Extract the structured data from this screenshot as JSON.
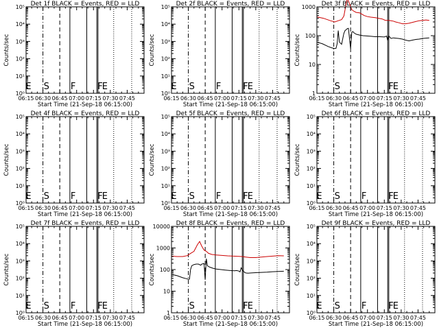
{
  "xlabel": "Start Time (21-Sep-18 06:15:00)",
  "ylabel": "Counts/sec",
  "chart_data": [
    {
      "type": "line",
      "title": "Det 1f BLACK = Events, RED = LLD",
      "yscale": "log",
      "ylim": [
        1,
        100000
      ],
      "yticks": [
        "10⁰",
        "10¹",
        "10²",
        "10³",
        "10⁴",
        "10⁵"
      ],
      "xlim": [
        0,
        105
      ],
      "xticks": [
        "06:15",
        "06:30",
        "06:45",
        "07:00",
        "07:15",
        "07:30",
        "07:45"
      ],
      "markers": [
        {
          "label": "E",
          "x": -1
        },
        {
          "label": "S",
          "x": 15
        },
        {
          "label": "F",
          "x": 39
        },
        {
          "label": "F",
          "x": 63
        },
        {
          "label": "E",
          "x": 67
        }
      ],
      "vlines": [
        {
          "x": 15,
          "style": "dashdot"
        },
        {
          "x": 30,
          "style": "dashed"
        },
        {
          "x": 39,
          "style": "solid"
        },
        {
          "x": 54,
          "style": "solid"
        },
        {
          "x": 63,
          "style": "solid"
        },
        {
          "x": 64,
          "style": "solid"
        },
        {
          "x": 78,
          "style": "dotted"
        },
        {
          "x": 94,
          "style": "dotted"
        }
      ],
      "series": []
    },
    {
      "type": "line",
      "title": "Det 2f BLACK = Events, RED = LLD",
      "yscale": "log",
      "ylim": [
        1,
        100000
      ],
      "yticks": [
        "10⁰",
        "10¹",
        "10²",
        "10³",
        "10⁴",
        "10⁵"
      ],
      "xlim": [
        0,
        105
      ],
      "xticks": [
        "06:15",
        "06:30",
        "06:45",
        "07:00",
        "07:15",
        "07:30",
        "07:45"
      ],
      "markers": [
        {
          "label": "E",
          "x": -1
        },
        {
          "label": "S",
          "x": 15
        },
        {
          "label": "F",
          "x": 39
        },
        {
          "label": "F",
          "x": 63
        },
        {
          "label": "E",
          "x": 67
        }
      ],
      "vlines": [
        {
          "x": 15,
          "style": "dashdot"
        },
        {
          "x": 30,
          "style": "dashed"
        },
        {
          "x": 39,
          "style": "solid"
        },
        {
          "x": 54,
          "style": "solid"
        },
        {
          "x": 63,
          "style": "solid"
        },
        {
          "x": 64,
          "style": "solid"
        },
        {
          "x": 78,
          "style": "dotted"
        },
        {
          "x": 94,
          "style": "dotted"
        }
      ],
      "series": []
    },
    {
      "type": "line",
      "title": "Det 3f BLACK = Events, RED = LLD",
      "yscale": "log",
      "ylim": [
        1,
        1000
      ],
      "yticks": [
        "1",
        "10",
        "100",
        "1000"
      ],
      "xlim": [
        0,
        105
      ],
      "xticks": [
        "06:15",
        "06:30",
        "06:45",
        "07:00",
        "07:15",
        "07:30",
        "07:45"
      ],
      "markers": [
        {
          "label": "S",
          "x": 15
        },
        {
          "label": "F",
          "x": 63
        },
        {
          "label": "E",
          "x": 67
        }
      ],
      "vlines": [
        {
          "x": 15,
          "style": "dashdot"
        },
        {
          "x": 30,
          "style": "dashed"
        },
        {
          "x": 39,
          "style": "solid"
        },
        {
          "x": 54,
          "style": "solid"
        },
        {
          "x": 63,
          "style": "solid"
        },
        {
          "x": 64,
          "style": "solid"
        },
        {
          "x": 78,
          "style": "dotted"
        },
        {
          "x": 94,
          "style": "dotted"
        }
      ],
      "series": [
        {
          "color": "#cc0000",
          "x": [
            0,
            6,
            12,
            16,
            19,
            22,
            24,
            27,
            29,
            31,
            33,
            35,
            38,
            40,
            42,
            45,
            48,
            52,
            55,
            58,
            61,
            64,
            66,
            68,
            70,
            73,
            76,
            79,
            82,
            85,
            88,
            91,
            94,
            97,
            100
          ],
          "y": [
            450,
            400,
            330,
            300,
            330,
            360,
            480,
            2000,
            1300,
            800,
            700,
            640,
            620,
            560,
            500,
            460,
            440,
            420,
            400,
            380,
            340,
            340,
            330,
            320,
            300,
            280,
            260,
            260,
            270,
            290,
            310,
            330,
            340,
            350,
            340
          ]
        },
        {
          "color": "#000000",
          "x": [
            0,
            5,
            10,
            13,
            15,
            17,
            18,
            19,
            20,
            22,
            24,
            25,
            26,
            27,
            28,
            30,
            31,
            32,
            33,
            35,
            38,
            41,
            44,
            48,
            52,
            56,
            60,
            62,
            63,
            64,
            66,
            68,
            70,
            73,
            76,
            79,
            82,
            85,
            88,
            91,
            94,
            97,
            100
          ],
          "y": [
            60,
            52,
            42,
            38,
            36,
            36,
            52,
            150,
            60,
            50,
            120,
            150,
            160,
            175,
            180,
            35,
            130,
            140,
            125,
            112,
            105,
            100,
            98,
            95,
            92,
            92,
            90,
            96,
            68,
            98,
            80,
            84,
            82,
            80,
            76,
            70,
            66,
            70,
            74,
            76,
            80,
            82,
            84
          ]
        }
      ]
    },
    {
      "type": "line",
      "title": "Det 4f BLACK = Events, RED = LLD",
      "yscale": "log",
      "ylim": [
        1,
        100000
      ],
      "yticks": [
        "10⁰",
        "10¹",
        "10²",
        "10³",
        "10⁴",
        "10⁵"
      ],
      "xlim": [
        0,
        105
      ],
      "xticks": [
        "06:15",
        "06:30",
        "06:45",
        "07:00",
        "07:15",
        "07:30",
        "07:45"
      ],
      "markers": [
        {
          "label": "E",
          "x": -1
        },
        {
          "label": "S",
          "x": 15
        },
        {
          "label": "F",
          "x": 39
        },
        {
          "label": "F",
          "x": 63
        },
        {
          "label": "E",
          "x": 67
        }
      ],
      "vlines": [
        {
          "x": 15,
          "style": "dashdot"
        },
        {
          "x": 30,
          "style": "dashed"
        },
        {
          "x": 39,
          "style": "solid"
        },
        {
          "x": 54,
          "style": "solid"
        },
        {
          "x": 63,
          "style": "solid"
        },
        {
          "x": 64,
          "style": "solid"
        },
        {
          "x": 78,
          "style": "dotted"
        },
        {
          "x": 94,
          "style": "dotted"
        }
      ],
      "series": []
    },
    {
      "type": "line",
      "title": "Det 5f BLACK = Events, RED = LLD",
      "yscale": "log",
      "ylim": [
        1,
        100000
      ],
      "yticks": [
        "10⁰",
        "10¹",
        "10²",
        "10³",
        "10⁴",
        "10⁵"
      ],
      "xlim": [
        0,
        105
      ],
      "xticks": [
        "06:15",
        "06:30",
        "06:45",
        "07:00",
        "07:15",
        "07:30",
        "07:45"
      ],
      "markers": [
        {
          "label": "E",
          "x": -1
        },
        {
          "label": "S",
          "x": 15
        },
        {
          "label": "F",
          "x": 39
        },
        {
          "label": "F",
          "x": 63
        },
        {
          "label": "E",
          "x": 67
        }
      ],
      "vlines": [
        {
          "x": 15,
          "style": "dashdot"
        },
        {
          "x": 30,
          "style": "dashed"
        },
        {
          "x": 39,
          "style": "solid"
        },
        {
          "x": 54,
          "style": "solid"
        },
        {
          "x": 63,
          "style": "solid"
        },
        {
          "x": 64,
          "style": "solid"
        },
        {
          "x": 78,
          "style": "dotted"
        },
        {
          "x": 94,
          "style": "dotted"
        }
      ],
      "series": []
    },
    {
      "type": "line",
      "title": "Det 6f BLACK = Events, RED = LLD",
      "yscale": "log",
      "ylim": [
        1,
        100000
      ],
      "yticks": [
        "10⁰",
        "10¹",
        "10²",
        "10³",
        "10⁴",
        "10⁵"
      ],
      "xlim": [
        0,
        105
      ],
      "xticks": [
        "06:15",
        "06:30",
        "06:45",
        "07:00",
        "07:15",
        "07:30",
        "07:45"
      ],
      "markers": [
        {
          "label": "E",
          "x": -1
        },
        {
          "label": "S",
          "x": 15
        },
        {
          "label": "F",
          "x": 39
        },
        {
          "label": "F",
          "x": 63
        },
        {
          "label": "E",
          "x": 67
        }
      ],
      "vlines": [
        {
          "x": 15,
          "style": "dashdot"
        },
        {
          "x": 30,
          "style": "dashed"
        },
        {
          "x": 39,
          "style": "solid"
        },
        {
          "x": 54,
          "style": "solid"
        },
        {
          "x": 63,
          "style": "solid"
        },
        {
          "x": 64,
          "style": "solid"
        },
        {
          "x": 78,
          "style": "dotted"
        },
        {
          "x": 94,
          "style": "dotted"
        }
      ],
      "series": []
    },
    {
      "type": "line",
      "title": "Det 7f BLACK = Events, RED = LLD",
      "yscale": "log",
      "ylim": [
        1,
        100000
      ],
      "yticks": [
        "10⁰",
        "10¹",
        "10²",
        "10³",
        "10⁴",
        "10⁵"
      ],
      "xlim": [
        0,
        105
      ],
      "xticks": [
        "06:15",
        "06:30",
        "06:45",
        "07:00",
        "07:15",
        "07:30",
        "07:45"
      ],
      "markers": [
        {
          "label": "E",
          "x": -1
        },
        {
          "label": "S",
          "x": 15
        },
        {
          "label": "F",
          "x": 39
        },
        {
          "label": "F",
          "x": 63
        },
        {
          "label": "E",
          "x": 67
        }
      ],
      "vlines": [
        {
          "x": 15,
          "style": "dashdot"
        },
        {
          "x": 30,
          "style": "dashed"
        },
        {
          "x": 39,
          "style": "solid"
        },
        {
          "x": 54,
          "style": "solid"
        },
        {
          "x": 63,
          "style": "solid"
        },
        {
          "x": 64,
          "style": "solid"
        },
        {
          "x": 78,
          "style": "dotted"
        },
        {
          "x": 94,
          "style": "dotted"
        }
      ],
      "series": []
    },
    {
      "type": "line",
      "title": "Det 8f BLACK = Events, RED = LLD",
      "yscale": "log",
      "ylim": [
        1,
        10000
      ],
      "yticks": [
        "1",
        "10",
        "100",
        "1000",
        "10000"
      ],
      "xlim": [
        0,
        105
      ],
      "xticks": [
        "06:15",
        "06:30",
        "06:45",
        "07:00",
        "07:15",
        "07:30",
        "07:45"
      ],
      "markers": [
        {
          "label": "S",
          "x": 15
        },
        {
          "label": "F",
          "x": 63
        },
        {
          "label": "E",
          "x": 67
        }
      ],
      "vlines": [
        {
          "x": 15,
          "style": "dashdot"
        },
        {
          "x": 30,
          "style": "dashed"
        },
        {
          "x": 39,
          "style": "solid"
        },
        {
          "x": 54,
          "style": "solid"
        },
        {
          "x": 63,
          "style": "solid"
        },
        {
          "x": 64,
          "style": "solid"
        },
        {
          "x": 78,
          "style": "dotted"
        },
        {
          "x": 94,
          "style": "dotted"
        }
      ],
      "series": [
        {
          "color": "#cc0000",
          "x": [
            0,
            5,
            10,
            14,
            17,
            20,
            23,
            25,
            27,
            29,
            31,
            33,
            36,
            40,
            45,
            50,
            55,
            60,
            63,
            66,
            70,
            75,
            80,
            85,
            90,
            95,
            100
          ],
          "y": [
            420,
            400,
            400,
            440,
            560,
            700,
            1400,
            2000,
            1200,
            800,
            700,
            560,
            500,
            470,
            450,
            430,
            420,
            410,
            400,
            380,
            360,
            360,
            380,
            400,
            420,
            440,
            430
          ]
        },
        {
          "color": "#000000",
          "x": [
            0,
            5,
            10,
            13,
            15,
            16,
            17,
            18,
            19,
            20,
            22,
            24,
            26,
            27,
            29,
            30,
            31,
            32,
            34,
            37,
            40,
            44,
            48,
            52,
            56,
            58,
            60,
            61,
            62,
            64,
            66,
            68,
            71,
            75,
            80,
            85,
            90,
            95,
            100
          ],
          "y": [
            60,
            52,
            42,
            38,
            36,
            36,
            100,
            150,
            160,
            170,
            180,
            180,
            160,
            180,
            190,
            34,
            320,
            150,
            130,
            115,
            105,
            100,
            95,
            90,
            88,
            90,
            85,
            78,
            120,
            82,
            70,
            68,
            70,
            72,
            74,
            76,
            80,
            82,
            84
          ]
        }
      ]
    },
    {
      "type": "line",
      "title": "Det 9f BLACK = Events, RED = LLD",
      "yscale": "log",
      "ylim": [
        1,
        100000
      ],
      "yticks": [
        "10⁰",
        "10¹",
        "10²",
        "10³",
        "10⁴",
        "10⁵"
      ],
      "xlim": [
        0,
        105
      ],
      "xticks": [
        "06:15",
        "06:30",
        "06:45",
        "07:00",
        "07:15",
        "07:30",
        "07:45"
      ],
      "markers": [
        {
          "label": "E",
          "x": -1
        },
        {
          "label": "S",
          "x": 15
        },
        {
          "label": "F",
          "x": 39
        },
        {
          "label": "F",
          "x": 63
        },
        {
          "label": "E",
          "x": 67
        }
      ],
      "vlines": [
        {
          "x": 15,
          "style": "dashdot"
        },
        {
          "x": 30,
          "style": "dashed"
        },
        {
          "x": 39,
          "style": "solid"
        },
        {
          "x": 54,
          "style": "solid"
        },
        {
          "x": 63,
          "style": "solid"
        },
        {
          "x": 64,
          "style": "solid"
        },
        {
          "x": 78,
          "style": "dotted"
        },
        {
          "x": 94,
          "style": "dotted"
        }
      ],
      "series": []
    }
  ]
}
